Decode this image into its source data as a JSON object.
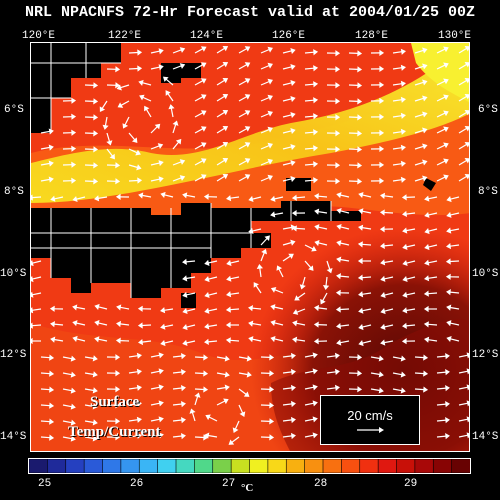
{
  "title": "NRL NPACNFS 72-Hr Forecast valid at 2004/01/25 00Z",
  "longitude_labels": [
    "120°E",
    "122°E",
    "124°E",
    "126°E",
    "128°E",
    "130°E"
  ],
  "latitude_labels": [
    "6°S",
    "8°S",
    "10°S",
    "12°S",
    "14°S"
  ],
  "caption": {
    "line1": "Surface",
    "line2": "Temp/Current"
  },
  "reference_vector": {
    "label": "20 cm/s"
  },
  "colorbar": {
    "tick_labels": [
      "25",
      "26",
      "27",
      "28",
      "29"
    ],
    "unit": "°C",
    "colors": [
      "#1a1a6e",
      "#1f2a9a",
      "#2540c0",
      "#2a5ad8",
      "#2f78e8",
      "#3595f0",
      "#3ab5f5",
      "#40d0f0",
      "#45d8c0",
      "#50d88a",
      "#7ad04a",
      "#c8e020",
      "#f0f020",
      "#f8d818",
      "#f8b010",
      "#f89010",
      "#f87010",
      "#f85010",
      "#f03010",
      "#e01810",
      "#c81008",
      "#a80808",
      "#880404",
      "#680202"
    ]
  },
  "colors": {
    "background": "#000000",
    "land": "#000000",
    "warm_water": "#f02810",
    "yellow_band": "#f8e020",
    "dark_water": "#7a0a04"
  }
}
